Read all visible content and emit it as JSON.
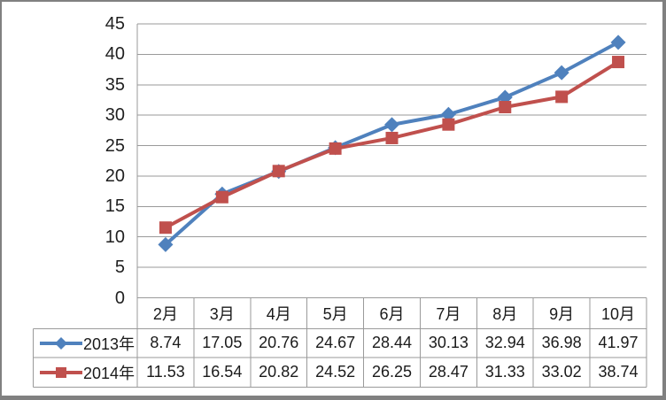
{
  "chart_data": {
    "type": "line",
    "title": "",
    "xlabel": "",
    "ylabel": "",
    "categories": [
      "2月",
      "3月",
      "4月",
      "5月",
      "6月",
      "7月",
      "8月",
      "9月",
      "10月"
    ],
    "series": [
      {
        "name": "2013年",
        "marker": "diamond",
        "color": "#4F81BD",
        "values": [
          8.74,
          17.05,
          20.76,
          24.67,
          28.44,
          30.13,
          32.94,
          36.98,
          41.97
        ],
        "value_labels": [
          "8.74",
          "17.05",
          "20.76",
          "24.67",
          "28.44",
          "30.13",
          "32.94",
          "36.98",
          "41.97"
        ]
      },
      {
        "name": "2014年",
        "marker": "square",
        "color": "#C0504D",
        "values": [
          11.53,
          16.54,
          20.82,
          24.52,
          26.25,
          28.47,
          31.33,
          33.02,
          38.74
        ],
        "value_labels": [
          "11.53",
          "16.54",
          "20.82",
          "24.52",
          "26.25",
          "28.47",
          "31.33",
          "33.02",
          "38.74"
        ]
      }
    ],
    "ylim": [
      0,
      45
    ],
    "ytick_step": 5,
    "ytick_labels": [
      "0",
      "5",
      "10",
      "15",
      "20",
      "25",
      "30",
      "35",
      "40",
      "45"
    ],
    "grid": true,
    "legend_position": "data-table-left"
  },
  "colors": {
    "series_2013": "#4F81BD",
    "series_2014": "#C0504D",
    "gridline": "#9a9a9a",
    "table_border": "#9a9a9a",
    "frame": "#808080",
    "text": "#1a1a1a",
    "background": "#ffffff"
  }
}
